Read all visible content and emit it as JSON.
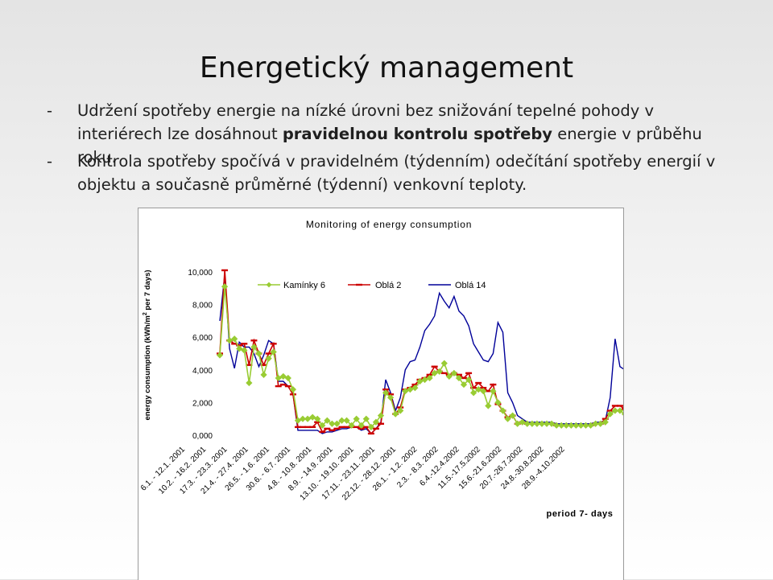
{
  "slide": {
    "title": "Energetický management",
    "bullets": [
      {
        "dash": "-",
        "parts": [
          {
            "text": "Udržení spotřeby energie na nízké úrovni bez snižování tepelné pohody v interiérech lze dosáhnout ",
            "bold": false
          },
          {
            "text": "pravidelnou kontrolu spotřeby",
            "bold": true
          },
          {
            "text": " energie v průběhu roku.",
            "bold": false
          }
        ]
      },
      {
        "dash": "-",
        "parts": [
          {
            "text": "Kontrola spotřeby spočívá v pravidelném (týdenním) odečítání spotřeby energií v objektu a současně průměrné (týdenní) venkovní teploty.",
            "bold": false
          }
        ]
      }
    ]
  },
  "colors": {
    "kaminky": "#99CC33",
    "obla2": "#CC0000",
    "obla14": "#000099"
  },
  "chart_data": {
    "type": "line",
    "title": "Monitoring of energy consumption",
    "ylabel_main": "energy consumption (kWh/m",
    "ylabel_sup": "2",
    "ylabel_rest": " per 7 days)",
    "xlabel": "period 7- days",
    "ylim": [
      0,
      10000
    ],
    "yticks": [
      "10,000",
      "8,000",
      "6,000",
      "4,000",
      "2,000",
      "0,000"
    ],
    "x_tick_labels": [
      "6.1. - 12.1. 2001",
      "10.2. - 16.2. 2001",
      "17.3. - 23.3. 2001",
      "21.4. - 27.4. 2001",
      "26.5. - 1.6. 2001",
      "30.6. - 6.7. 2001",
      "4.8. - 10.8. 2001",
      "8.9. - 14.9. 2001",
      "13.10. - 19.10. 2001",
      "17.11. - 23.11. 2001",
      "22.12. - 28.12. 2001",
      "26.1. - 1.2. 2002",
      "2.3. - 8.3. 2002",
      "6.4.-12.4.2002",
      "11.5.-17.5.2002",
      "15.6.-21.6.2002",
      "20.7.-26.7.2002",
      "24.8.-30.8.2002",
      "28.9.-4.10.2002"
    ],
    "legend_placement": "top",
    "series": [
      {
        "name": "Kamínky 6",
        "key": "kaminky",
        "marker": "diamond",
        "values": [
          4900,
          9100,
          5800,
          5900,
          5300,
          5200,
          3200,
          5400,
          5000,
          3700,
          4700,
          5100,
          3500,
          3600,
          3500,
          2800,
          900,
          1000,
          1000,
          1100,
          1000,
          600,
          900,
          700,
          700,
          900,
          900,
          600,
          1000,
          600,
          1000,
          500,
          800,
          1200,
          2600,
          2300,
          1300,
          1500,
          2700,
          2800,
          2900,
          3300,
          3400,
          3500,
          3800,
          3900,
          4400,
          3600,
          3800,
          3500,
          3100,
          3400,
          2600,
          2800,
          2700,
          1800,
          2700,
          2000,
          1500,
          1000,
          1200,
          700,
          800,
          700,
          700,
          700,
          700,
          700,
          700,
          600,
          600,
          600,
          600,
          600,
          600,
          600,
          600,
          700,
          700,
          800,
          1300,
          1500,
          1500,
          1300
        ]
      },
      {
        "name": "Oblá 2",
        "key": "obla2",
        "marker": "dash",
        "values": [
          5000,
          10100,
          5800,
          5600,
          5500,
          5600,
          4300,
          5800,
          5000,
          4300,
          5000,
          5600,
          3000,
          3100,
          3000,
          2500,
          500,
          500,
          500,
          500,
          800,
          200,
          400,
          300,
          400,
          500,
          500,
          500,
          500,
          400,
          500,
          100,
          400,
          700,
          2800,
          2500,
          1300,
          1700,
          2800,
          2900,
          3100,
          3400,
          3500,
          3700,
          4200,
          3900,
          3800,
          3700,
          3800,
          3700,
          3500,
          3800,
          2900,
          3200,
          2900,
          2700,
          3100,
          1900,
          1500,
          1100,
          1200,
          700,
          800,
          700,
          700,
          700,
          700,
          700,
          700,
          600,
          600,
          600,
          600,
          600,
          600,
          600,
          600,
          700,
          700,
          1000,
          1500,
          1800,
          1800,
          1600
        ]
      },
      {
        "name": "Oblá 14",
        "key": "obla14",
        "marker": "none",
        "values": [
          7000,
          9800,
          5300,
          4100,
          5700,
          5400,
          5400,
          5000,
          4200,
          4900,
          5800,
          5600,
          3300,
          3300,
          3000,
          2500,
          300,
          300,
          300,
          300,
          300,
          100,
          200,
          200,
          300,
          400,
          400,
          500,
          500,
          300,
          400,
          100,
          400,
          800,
          3400,
          2600,
          1500,
          2300,
          4000,
          4500,
          4600,
          5400,
          6400,
          6800,
          7300,
          8700,
          8200,
          7800,
          8500,
          7600,
          7300,
          6700,
          5600,
          5100,
          4600,
          4500,
          5000,
          6900,
          6300,
          2600,
          2000,
          1200,
          1000,
          800,
          800,
          800,
          800,
          800,
          800,
          700,
          700,
          700,
          700,
          700,
          700,
          700,
          700,
          800,
          800,
          900,
          2300,
          5900,
          4200,
          4000,
          3200
        ]
      }
    ]
  }
}
